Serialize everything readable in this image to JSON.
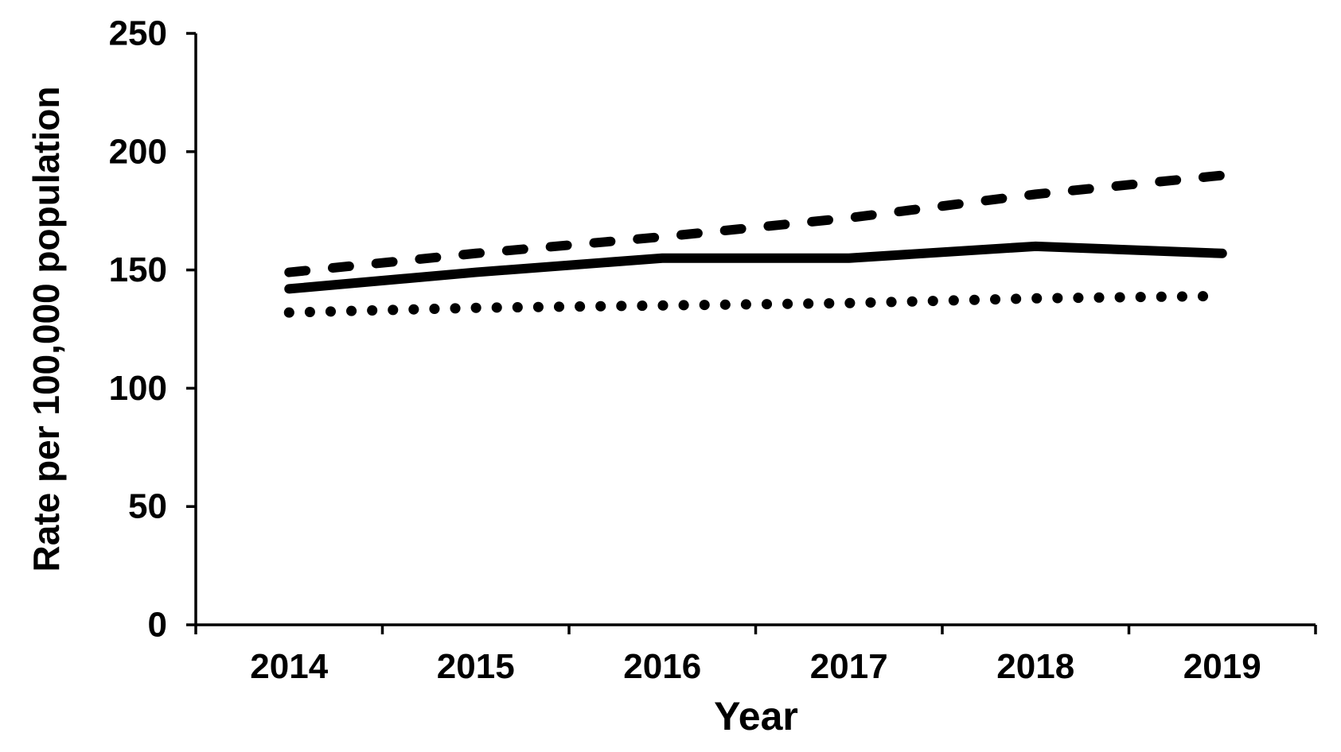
{
  "page": {
    "background_color": "#ffffff",
    "foreground_color": "#000000"
  },
  "chart_data": {
    "type": "line",
    "title": "",
    "xlabel": "Year",
    "ylabel": "Rate per 100,000 population",
    "x_categories": [
      "2014",
      "2015",
      "2016",
      "2017",
      "2018",
      "2019"
    ],
    "yticks": [
      "0",
      "50",
      "100",
      "150",
      "200",
      "250"
    ],
    "ytick_values": [
      0,
      50,
      100,
      150,
      200,
      250
    ],
    "ylim": [
      0,
      250
    ],
    "grid": false,
    "legend_position": "none",
    "line_color": "#000000",
    "series": [
      {
        "name": "dashed-line-series",
        "line_style": "dashed",
        "values": [
          149,
          157,
          164,
          172,
          182,
          190
        ]
      },
      {
        "name": "solid-line-series",
        "line_style": "solid",
        "values": [
          142,
          149,
          155,
          155,
          160,
          157
        ]
      },
      {
        "name": "dotted-line-series",
        "line_style": "dotted",
        "values": [
          132,
          134,
          135,
          136,
          138,
          139
        ]
      }
    ]
  }
}
